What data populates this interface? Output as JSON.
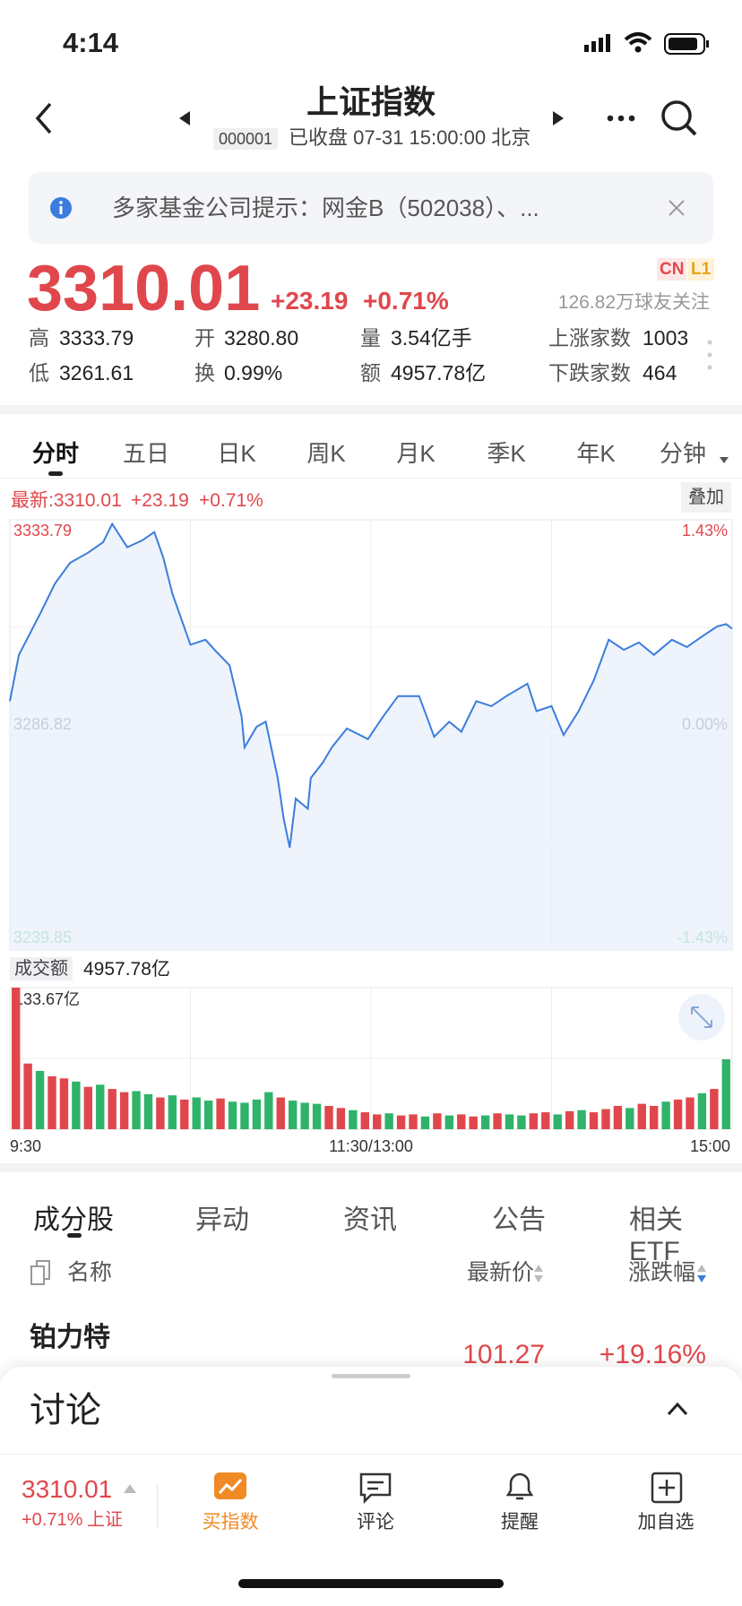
{
  "status_bar": {
    "time": "4:14"
  },
  "header": {
    "title": "上证指数",
    "code": "000001",
    "status": "已收盘 07-31 15:00:00 北京"
  },
  "notice": {
    "text": "多家基金公司提示：网金B（502038）、..."
  },
  "quote": {
    "price": "3310.01",
    "change": "+23.19",
    "change_pct": "+0.71%",
    "badges": [
      "CN",
      "L1"
    ],
    "followers": "126.82万球友关注"
  },
  "stats": [
    [
      {
        "label": "高",
        "value": "3333.79"
      },
      {
        "label": "开",
        "value": "3280.80"
      },
      {
        "label": "量",
        "value": "3.54亿手"
      },
      {
        "label": "上涨家数",
        "value": "1003"
      }
    ],
    [
      {
        "label": "低",
        "value": "3261.61"
      },
      {
        "label": "换",
        "value": "0.99%"
      },
      {
        "label": "额",
        "value": "4957.78亿"
      },
      {
        "label": "下跌家数",
        "value": "464"
      }
    ]
  ],
  "chart_tabs": [
    "分时",
    "五日",
    "日K",
    "周K",
    "月K",
    "季K",
    "年K",
    "分钟"
  ],
  "intraday": {
    "type": "line",
    "latest": "最新:3310.01",
    "change": "+23.19",
    "change_pct": "+0.71%",
    "overlay_button": "叠加",
    "color": "#3b7ddd",
    "x": [
      0,
      3,
      10,
      15,
      20,
      26,
      31,
      34,
      39,
      44,
      48,
      51,
      54,
      60,
      65,
      68,
      73,
      77,
      78,
      82,
      85,
      89,
      91,
      93,
      95,
      99,
      100,
      104,
      107,
      112,
      119,
      124,
      129,
      136,
      141,
      146,
      150,
      155,
      160,
      165,
      172,
      175,
      180,
      184,
      189,
      194,
      199,
      204,
      209,
      214,
      220,
      225,
      230,
      235,
      238,
      240
    ],
    "values": [
      3294.2,
      3304.3,
      3313.2,
      3319.9,
      3324.4,
      3326.6,
      3328.9,
      3332.9,
      3327.8,
      3329.3,
      3331.1,
      3325.5,
      3317.7,
      3306.5,
      3307.6,
      3305.4,
      3302.0,
      3290.8,
      3284.1,
      3288.6,
      3289.7,
      3277.4,
      3268.5,
      3262.2,
      3272.9,
      3270.7,
      3277.4,
      3280.8,
      3284.1,
      3288.2,
      3285.9,
      3290.8,
      3295.3,
      3295.3,
      3286.4,
      3289.7,
      3287.5,
      3294.2,
      3293.1,
      3295.3,
      3298.0,
      3292.0,
      3293.1,
      3286.8,
      3292.0,
      3298.7,
      3307.6,
      3305.4,
      3307.0,
      3304.3,
      3307.6,
      3306.0,
      3308.3,
      3310.5,
      3311.0,
      3310.01
    ],
    "xlim": [
      0,
      240
    ],
    "xticks": [
      {
        "value": 0,
        "label": "9:30"
      },
      {
        "value": 120,
        "label": "11:30/13:00"
      },
      {
        "value": 240,
        "label": "15:00"
      }
    ],
    "ylim": [
      3239.85,
      3333.79
    ],
    "yticks": [
      3239.85,
      3286.82,
      3333.79
    ],
    "y2lim": [
      -1.43,
      1.43
    ],
    "y2ticks": [
      {
        "value": -1.43,
        "label": "-1.43%"
      },
      {
        "value": 0,
        "label": "0.00%"
      },
      {
        "value": 1.43,
        "label": "1.43%"
      }
    ]
  },
  "volume": {
    "type": "bar",
    "label": "成交额",
    "total": "4957.78亿",
    "ylim": [
      0,
      133.67
    ],
    "yticks": [
      {
        "value": 133.67,
        "label": "133.67亿"
      }
    ],
    "values": [
      133.67,
      62,
      55,
      50,
      48,
      45,
      40,
      42,
      38,
      35,
      36,
      33,
      30,
      32,
      28,
      30,
      27,
      29,
      26,
      25,
      28,
      35,
      30,
      27,
      25,
      24,
      22,
      20,
      18,
      16,
      14,
      15,
      13,
      14,
      12,
      15,
      13,
      14,
      12,
      13,
      15,
      14,
      13,
      15,
      16,
      14,
      17,
      18,
      16,
      19,
      22,
      20,
      24,
      22,
      26,
      28,
      30,
      34,
      38,
      66
    ],
    "up": [
      1,
      1,
      0,
      1,
      1,
      0,
      1,
      0,
      1,
      1,
      0,
      0,
      1,
      0,
      1,
      0,
      0,
      1,
      0,
      0,
      0,
      0,
      1,
      0,
      0,
      0,
      1,
      1,
      0,
      1,
      1,
      0,
      1,
      1,
      0,
      1,
      0,
      1,
      1,
      0,
      1,
      0,
      0,
      1,
      1,
      0,
      1,
      0,
      1,
      1,
      1,
      0,
      1,
      1,
      0,
      1,
      1,
      0,
      1,
      0
    ],
    "up_color": "#e0474c",
    "down_color": "#2fb36a"
  },
  "list_tabs": [
    "成分股",
    "异动",
    "资讯",
    "公告",
    "相关ETF"
  ],
  "list_header": {
    "name": "名称",
    "price": "最新价",
    "change": "涨跌幅"
  },
  "rows": [
    {
      "name": "铂力特",
      "price": "101.27",
      "change": "+19.16%"
    }
  ],
  "discussion": {
    "title": "讨论"
  },
  "bottom_bar": {
    "price": "3310.01",
    "change_pct": "+0.71%",
    "index": "上证",
    "actions": [
      "买指数",
      "评论",
      "提醒",
      "加自选"
    ]
  }
}
